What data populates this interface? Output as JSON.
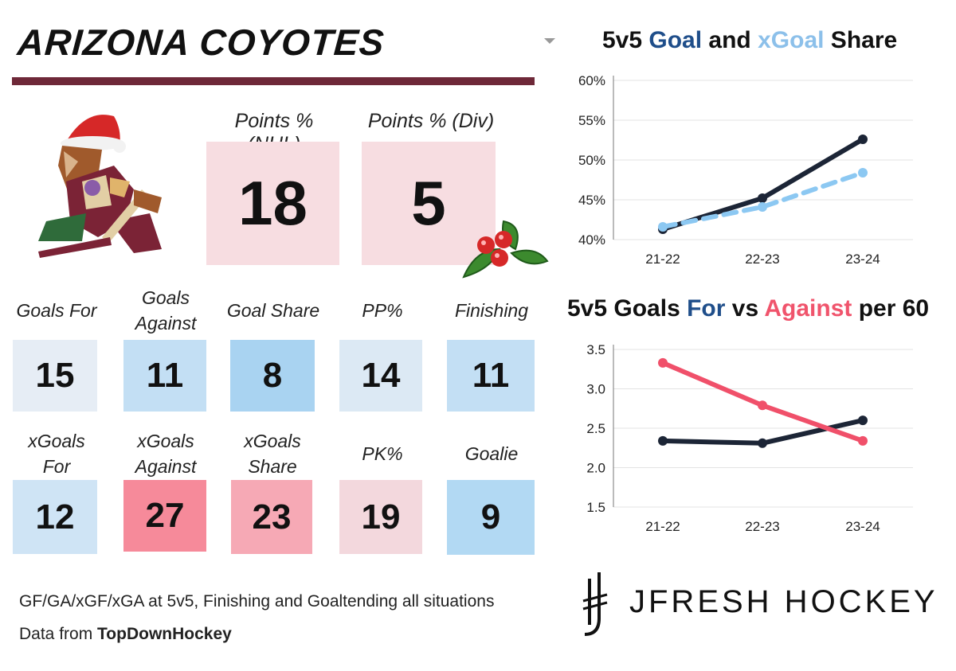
{
  "team": {
    "name": "ARIZONA COYOTES"
  },
  "points": [
    {
      "label": "Points % (NHL)",
      "value": "18"
    },
    {
      "label": "Points % (Div)",
      "value": "5"
    }
  ],
  "stats_row1": [
    {
      "label_lines": [
        "Goals For"
      ],
      "value": "15",
      "color": "#e6edf5"
    },
    {
      "label_lines": [
        "Goals",
        "Against"
      ],
      "value": "11",
      "color": "#c3dff4"
    },
    {
      "label_lines": [
        "Goal Share"
      ],
      "value": "8",
      "color": "#a9d3f1"
    },
    {
      "label_lines": [
        "PP%"
      ],
      "value": "14",
      "color": "#dce9f4"
    },
    {
      "label_lines": [
        "Finishing"
      ],
      "value": "11",
      "color": "#c3dff4"
    }
  ],
  "stats_row2": [
    {
      "label_lines": [
        "xGoals",
        "For"
      ],
      "value": "12",
      "color": "#cfe4f5"
    },
    {
      "label_lines": [
        "xGoals",
        "Against"
      ],
      "value": "27",
      "color": "#f68a9a"
    },
    {
      "label_lines": [
        "xGoals",
        "Share"
      ],
      "value": "23",
      "color": "#f6a9b5"
    },
    {
      "label_lines": [
        "PK%"
      ],
      "value": "19",
      "color": "#f3d8dd"
    },
    {
      "label_lines": [
        "Goalie"
      ],
      "value": "9",
      "color": "#b2d9f3"
    }
  ],
  "footnote": {
    "line1": "GF/GA/xGF/xGA at 5v5, Finishing and Goaltending all situations",
    "line2_prefix": "Data from ",
    "line2_source": "TopDownHockey"
  },
  "brand": {
    "text": "JFRESH HOCKEY"
  },
  "chart_data": [
    {
      "type": "line",
      "title_parts": [
        "5v5 ",
        "Goal",
        " and ",
        "xGoal",
        " Share"
      ],
      "categories": [
        "21-22",
        "22-23",
        "23-24"
      ],
      "y_ticks": [
        "60%",
        "55%",
        "50%",
        "45%",
        "40%"
      ],
      "ylim": [
        40,
        60
      ],
      "series": [
        {
          "values": [
            41.3,
            45.2,
            52.6
          ],
          "color": "#1c2536",
          "dashed": false
        },
        {
          "values": [
            41.6,
            44.1,
            48.4
          ],
          "color": "#8cc8f2",
          "dashed": true
        }
      ]
    },
    {
      "type": "line",
      "title_parts": [
        "5v5 Goals ",
        "For",
        " vs ",
        "Against",
        " per 60"
      ],
      "categories": [
        "21-22",
        "22-23",
        "23-24"
      ],
      "y_ticks": [
        "3.5",
        "3.0",
        "2.5",
        "2.0",
        "1.5"
      ],
      "ylim": [
        1.5,
        3.5
      ],
      "series": [
        {
          "values": [
            2.34,
            2.31,
            2.6
          ],
          "color": "#1c2536",
          "dashed": false
        },
        {
          "values": [
            3.33,
            2.79,
            2.34
          ],
          "color": "#f0506a",
          "dashed": false
        }
      ]
    }
  ]
}
